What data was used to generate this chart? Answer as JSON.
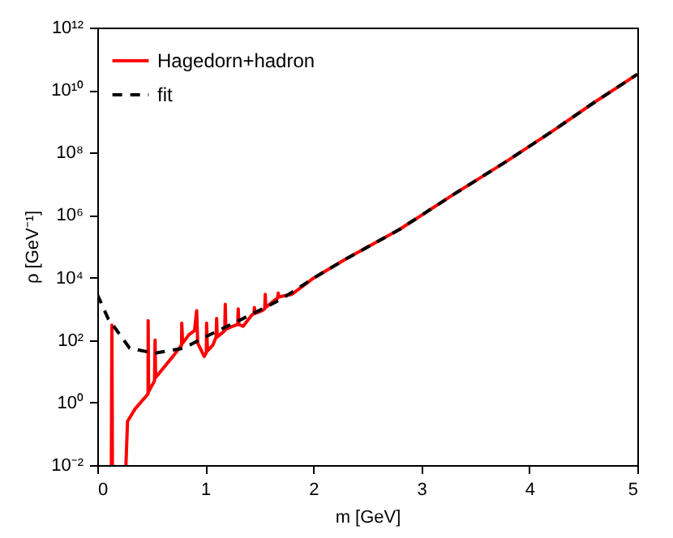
{
  "chart_data": {
    "type": "line",
    "xlabel": "m [GeV]",
    "ylabel": "ρ [GeV⁻¹]",
    "log": "y",
    "xlim": [
      0,
      5
    ],
    "xticks": [
      0,
      1,
      2,
      3,
      4,
      5
    ],
    "ylim": [
      0.01,
      1000000000000
    ],
    "yticks": [
      {
        "value": 0.01,
        "label": "10⁻²"
      },
      {
        "value": 1,
        "label": "10⁰"
      },
      {
        "value": 100,
        "label": "10²"
      },
      {
        "value": 10000,
        "label": "10⁴"
      },
      {
        "value": 1000000,
        "label": "10⁶"
      },
      {
        "value": 100000000,
        "label": "10⁸"
      },
      {
        "value": 10000000000,
        "label": "10¹⁰"
      },
      {
        "value": 1000000000000,
        "label": "10¹²"
      }
    ],
    "grid": false,
    "legend": "top left",
    "series": [
      {
        "name": "Hagedorn+hadron",
        "color": "#ff0000",
        "line_style": "solid",
        "x": [
          0.13,
          0.135,
          0.14,
          0.2,
          0.265,
          0.28,
          0.35,
          0.47,
          0.471,
          0.475,
          0.53,
          0.535,
          0.54,
          0.7,
          0.78,
          0.782,
          0.79,
          0.85,
          0.9,
          0.92,
          0.93,
          0.99,
          1.01,
          1.012,
          1.02,
          1.07,
          1.1,
          1.105,
          1.11,
          1.18,
          1.185,
          1.19,
          1.25,
          1.3,
          1.305,
          1.31,
          1.35,
          1.43,
          1.45,
          1.455,
          1.46,
          1.53,
          1.55,
          1.555,
          1.56,
          1.65,
          1.67,
          1.675,
          1.68,
          1.8,
          2.0,
          2.3,
          2.8,
          3.3,
          3.78,
          4.2,
          4.6,
          5.0
        ],
        "values": [
          0.01,
          300,
          0.01,
          null,
          0.01,
          0.25,
          0.63,
          1.9,
          420,
          2.2,
          5,
          100,
          6.3,
          30,
          69,
          350,
          79,
          150,
          200,
          870,
          79,
          30,
          40,
          350,
          45,
          69,
          126,
          490,
          126,
          200,
          1400,
          220,
          275,
          316,
          1000,
          316,
          275,
          630,
          710,
          1100,
          710,
          890,
          1000,
          2900,
          1100,
          2000,
          2200,
          3200,
          2400,
          2900,
          9500,
          39000,
          350000,
          4600000,
          50000000,
          450000000,
          4000000000,
          32000000000
        ]
      },
      {
        "name": "fit",
        "color": "#000000",
        "line_style": "dashed",
        "x": [
          0,
          0.1,
          0.3,
          0.53,
          0.8,
          1.0,
          1.35,
          1.7,
          2.0,
          2.3,
          2.8,
          3.3,
          3.78,
          4.2,
          4.6,
          5.0
        ],
        "values": [
          2900,
          490,
          55,
          38,
          55,
          126,
          490,
          2000,
          9500,
          39000,
          350000,
          4600000,
          50000000,
          450000000,
          4000000000,
          32000000000
        ]
      }
    ]
  }
}
